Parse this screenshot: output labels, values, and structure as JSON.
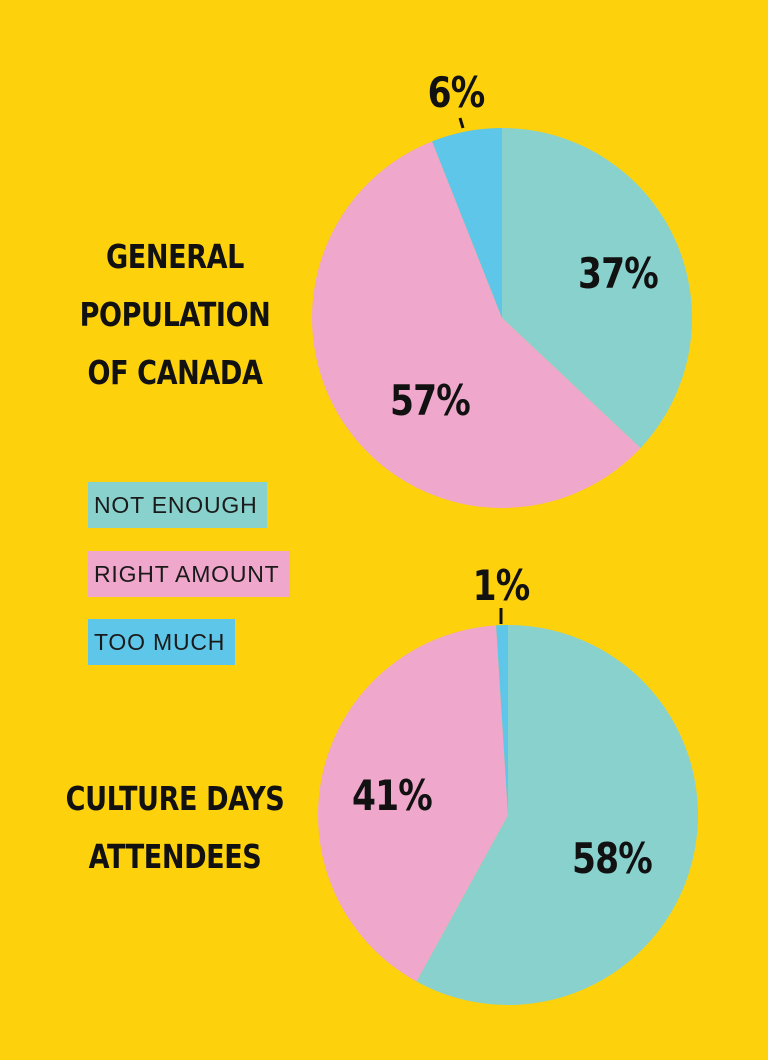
{
  "colors": {
    "background": "#FDD10B",
    "not_enough": "#89D1CD",
    "right_amount": "#EFA7CB",
    "too_much": "#5EC6E8",
    "text": "#111111"
  },
  "legend": [
    {
      "label": "NOT ENOUGH",
      "color": "#89D1CD"
    },
    {
      "label": "RIGHT AMOUNT",
      "color": "#EFA7CB"
    },
    {
      "label": "TOO MUCH",
      "color": "#5EC6E8"
    }
  ],
  "chart_data": [
    {
      "type": "pie",
      "title_lines": [
        "GENERAL",
        "POPULATION",
        "OF CANADA"
      ],
      "categories": [
        "NOT ENOUGH",
        "RIGHT AMOUNT",
        "TOO MUCH"
      ],
      "values": [
        37,
        57,
        6
      ],
      "labels": [
        "37%",
        "57%",
        "6%"
      ]
    },
    {
      "type": "pie",
      "title_lines": [
        "CULTURE DAYS",
        "ATTENDEES"
      ],
      "categories": [
        "NOT ENOUGH",
        "RIGHT AMOUNT",
        "TOO MUCH"
      ],
      "values": [
        58,
        41,
        1
      ],
      "labels": [
        "58%",
        "41%",
        "1%"
      ]
    }
  ]
}
